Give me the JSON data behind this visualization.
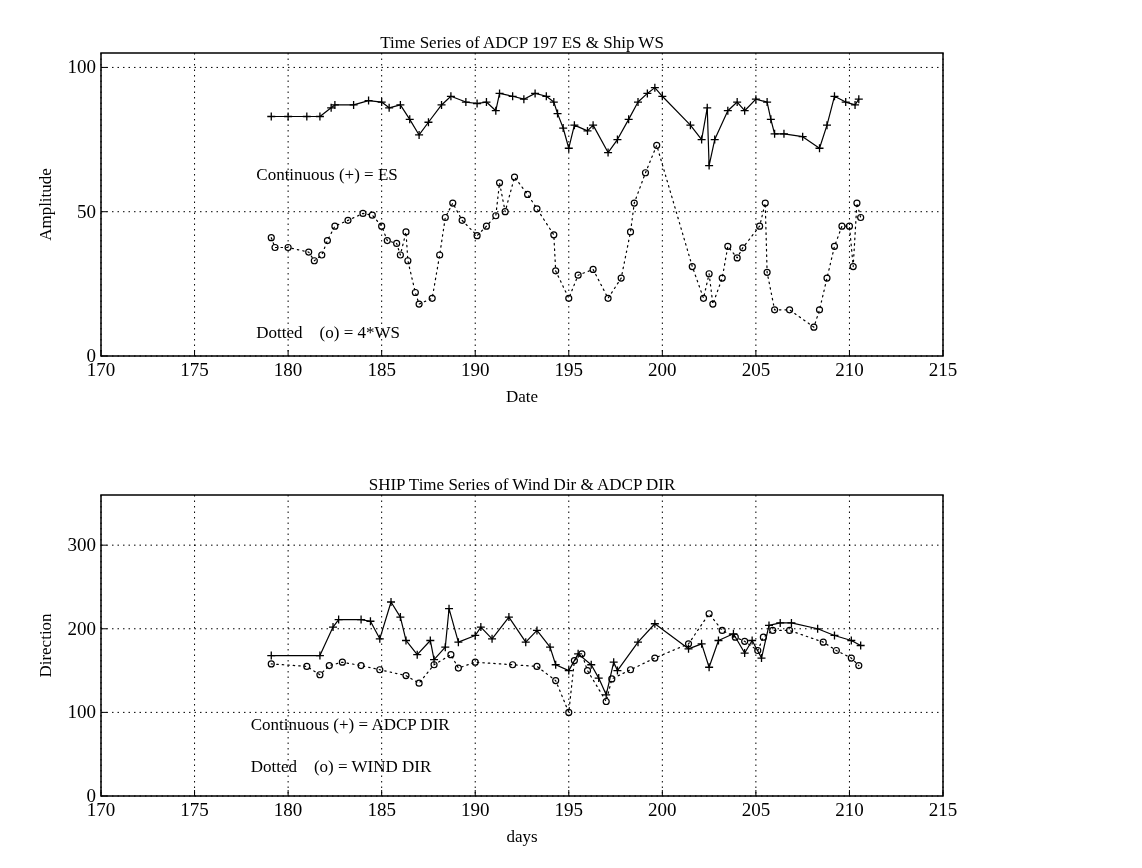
{
  "chart_data": [
    {
      "type": "line",
      "title": "Time Series of ADCP 197 ES & Ship WS",
      "xlabel": "Date",
      "ylabel": "Amplitude",
      "xlim": [
        170,
        215
      ],
      "xticks": [
        170,
        175,
        180,
        185,
        190,
        195,
        200,
        205,
        210,
        215
      ],
      "ylim": [
        0,
        105
      ],
      "yticks": [
        0,
        50,
        100
      ],
      "grid": true,
      "annotations": [
        "Continuous (+) = ES",
        "Dotted    (o) = 4*WS"
      ],
      "series": [
        {
          "color": "#000000",
          "marker": "cross",
          "line_style": "solid",
          "x": [
            179.1,
            180,
            181,
            181.7,
            182.3,
            182.5,
            183.5,
            184.3,
            185,
            185.4,
            186,
            186.5,
            187,
            187.5,
            188.2,
            188.7,
            189.5,
            190.1,
            190.6,
            191.1,
            191.3,
            192,
            192.6,
            193.2,
            193.8,
            194.2,
            194.4,
            194.7,
            195,
            195.3,
            196,
            196.3,
            197.1,
            197.6,
            198.2,
            198.7,
            199.2,
            199.6,
            200,
            201.5,
            202.1,
            202.4,
            202.5,
            202.8,
            203.5,
            204,
            204.4,
            205,
            205.6,
            205.8,
            206,
            206.5,
            207.5,
            208.4,
            208.8,
            209.2,
            209.8,
            210.3,
            210.5
          ],
          "values": [
            83,
            83,
            83,
            83,
            86,
            87,
            87,
            88.5,
            88,
            86,
            87,
            82,
            76.6,
            81,
            87,
            90,
            88,
            87.5,
            88,
            85,
            91,
            90,
            89,
            91,
            90,
            88,
            84,
            79,
            72,
            80,
            78,
            80,
            70.5,
            75,
            82,
            88,
            91,
            93,
            90,
            80,
            75,
            86,
            66,
            75,
            85,
            88,
            85,
            89,
            88,
            82,
            77,
            77,
            76,
            72,
            80,
            90,
            88,
            87,
            89
          ]
        },
        {
          "color": "#000000",
          "marker": "circle",
          "line_style": "dotted",
          "x": [
            179.1,
            179.3,
            180,
            181.1,
            181.4,
            181.8,
            182.1,
            182.5,
            183.2,
            184,
            184.5,
            185,
            185.3,
            185.8,
            186,
            186.3,
            186.4,
            186.8,
            187,
            187.7,
            188.1,
            188.4,
            188.8,
            189.3,
            190.1,
            190.6,
            191.1,
            191.3,
            191.6,
            192.1,
            192.8,
            193.3,
            194.2,
            194.3,
            195,
            195.5,
            196.3,
            197.1,
            197.8,
            198.3,
            198.5,
            199.1,
            199.7,
            201.6,
            202.2,
            202.5,
            202.7,
            203.2,
            203.5,
            204,
            204.3,
            205.2,
            205.5,
            205.6,
            206,
            206.8,
            208.1,
            208.4,
            208.8,
            209.2,
            209.6,
            210,
            210.2,
            210.4,
            210.6
          ],
          "values": [
            41,
            37.6,
            37.6,
            36,
            33,
            35,
            40,
            45,
            47,
            49.4,
            48.8,
            45,
            40,
            39,
            35,
            43,
            33,
            22,
            18,
            20,
            35,
            48,
            53,
            47,
            41.7,
            45,
            48.6,
            60,
            50,
            62,
            56,
            51,
            42,
            29.5,
            20,
            28,
            30,
            20,
            27,
            43,
            53,
            63.5,
            73,
            31,
            20,
            28.5,
            18,
            27,
            38,
            34,
            37.5,
            45,
            53,
            29,
            16,
            16,
            10,
            16,
            27,
            38,
            45,
            45,
            31,
            53,
            48
          ]
        }
      ]
    },
    {
      "type": "line",
      "title": "SHIP Time Series of Wind Dir & ADCP DIR",
      "xlabel": "days",
      "ylabel": "Direction",
      "xlim": [
        170,
        215
      ],
      "xticks": [
        170,
        175,
        180,
        185,
        190,
        195,
        200,
        205,
        210,
        215
      ],
      "ylim": [
        0,
        360
      ],
      "yticks": [
        0,
        100,
        200,
        300
      ],
      "grid": true,
      "annotations": [
        "Continuous (+) = ADCP DIR",
        "Dotted    (o) = WIND DIR"
      ],
      "series": [
        {
          "color": "#000000",
          "marker": "cross",
          "line_style": "solid",
          "x": [
            179.1,
            181.7,
            182.4,
            182.7,
            183.9,
            184.4,
            184.9,
            185.5,
            186,
            186.3,
            186.9,
            187.6,
            187.8,
            188.4,
            188.6,
            189.1,
            190,
            190.3,
            190.9,
            191.8,
            192.7,
            193.3,
            194,
            194.3,
            195,
            195.5,
            196.2,
            196.6,
            197,
            197.4,
            197.6,
            198.7,
            199.6,
            201.4,
            202.1,
            202.5,
            203,
            203.8,
            204.4,
            204.8,
            205.3,
            205.7,
            206.3,
            206.9,
            208.3,
            209.2,
            210.1,
            210.6
          ],
          "values": [
            168,
            168,
            202,
            211,
            211,
            209,
            188,
            232,
            214,
            186,
            169,
            186,
            163,
            178,
            224,
            184,
            192,
            202,
            188,
            214,
            184,
            198,
            178,
            157,
            150,
            170,
            157,
            141,
            121,
            160,
            150,
            184,
            206,
            176,
            182,
            154,
            186,
            194,
            171,
            186,
            165,
            204,
            207,
            207,
            200,
            192,
            186,
            180
          ]
        },
        {
          "color": "#000000",
          "marker": "circle",
          "line_style": "dotted",
          "x": [
            179.1,
            181,
            181.7,
            182.2,
            182.9,
            183.9,
            184.9,
            186.3,
            187,
            187.8,
            188.7,
            189.1,
            190,
            192,
            193.3,
            194.3,
            195,
            195.3,
            195.7,
            196,
            197,
            197.3,
            198.3,
            199.6,
            201.4,
            202.5,
            203.2,
            203.9,
            204.4,
            205.1,
            205.4,
            205.9,
            206.8,
            208.6,
            209.3,
            210.1,
            210.5
          ],
          "values": [
            158,
            155,
            145,
            156,
            160,
            156,
            151,
            144,
            135,
            157,
            169,
            153,
            160,
            157,
            155,
            138,
            100,
            162,
            170,
            150,
            113,
            140,
            151,
            165,
            182,
            218,
            198,
            190,
            185,
            174,
            190,
            198,
            198,
            184,
            174,
            165,
            156
          ]
        }
      ]
    }
  ]
}
